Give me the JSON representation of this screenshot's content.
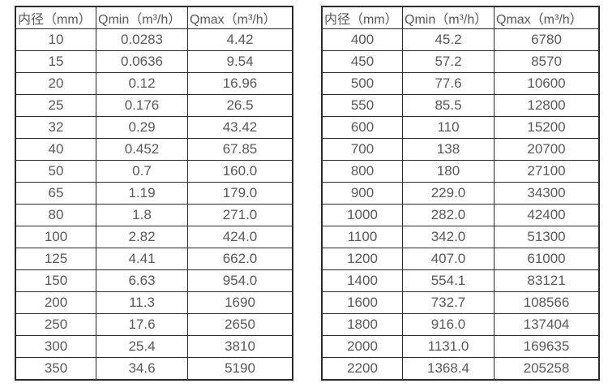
{
  "page": {
    "background_color": "#ffffff",
    "text_color": "#595959",
    "border_color": "#2b2b2b"
  },
  "tables": [
    {
      "name": "flow-rates-small-diameters",
      "headers": [
        "内径（mm）",
        "Qmin（m³/h）",
        "Qmax（m³/h）"
      ],
      "rows": [
        [
          "10",
          "0.0283",
          "4.42"
        ],
        [
          "15",
          "0.0636",
          "9.54"
        ],
        [
          "20",
          "0.12",
          "16.96"
        ],
        [
          "25",
          "0.176",
          "26.5"
        ],
        [
          "32",
          "0.29",
          "43.42"
        ],
        [
          "40",
          "0.452",
          "67.85"
        ],
        [
          "50",
          "0.7",
          "160.0"
        ],
        [
          "65",
          "1.19",
          "179.0"
        ],
        [
          "80",
          "1.8",
          "271.0"
        ],
        [
          "100",
          "2.82",
          "424.0"
        ],
        [
          "125",
          "4.41",
          "662.0"
        ],
        [
          "150",
          "6.63",
          "954.0"
        ],
        [
          "200",
          "11.3",
          "1690"
        ],
        [
          "250",
          "17.6",
          "2650"
        ],
        [
          "300",
          "25.4",
          "3810"
        ],
        [
          "350",
          "34.6",
          "5190"
        ]
      ]
    },
    {
      "name": "flow-rates-large-diameters",
      "headers": [
        "内径（mm）",
        "Qmin（m³/h）",
        "Qmax（m³/h）"
      ],
      "rows": [
        [
          "400",
          "45.2",
          "6780"
        ],
        [
          "450",
          "57.2",
          "8570"
        ],
        [
          "500",
          "77.6",
          "10600"
        ],
        [
          "550",
          "85.5",
          "12800"
        ],
        [
          "600",
          "110",
          "15200"
        ],
        [
          "700",
          "138",
          "20700"
        ],
        [
          "800",
          "180",
          "27100"
        ],
        [
          "900",
          "229.0",
          "34300"
        ],
        [
          "1000",
          "282.0",
          "42400"
        ],
        [
          "1100",
          "342.0",
          "51300"
        ],
        [
          "1200",
          "407.0",
          "61000"
        ],
        [
          "1400",
          "554.1",
          "83121"
        ],
        [
          "1600",
          "732.7",
          "108566"
        ],
        [
          "1800",
          "916.0",
          "137404"
        ],
        [
          "2000",
          "1131.0",
          "169635"
        ],
        [
          "2200",
          "1368.4",
          "205258"
        ]
      ]
    }
  ]
}
